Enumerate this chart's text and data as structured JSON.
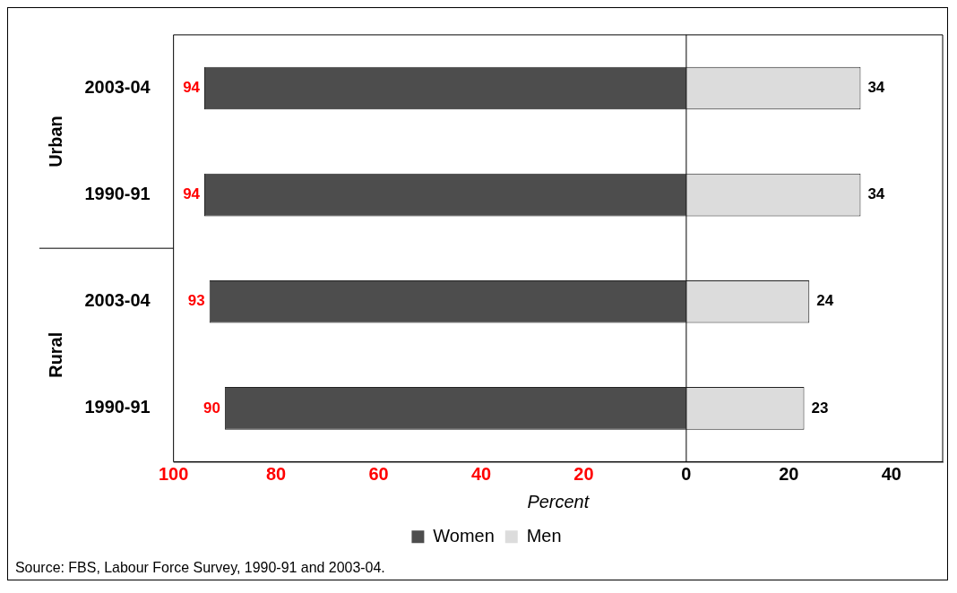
{
  "chart_data": {
    "type": "bar",
    "orientation": "horizontal",
    "categories": [
      "2003-04",
      "1990-91",
      "2003-04",
      "1990-91"
    ],
    "series": [
      {
        "name": "Women",
        "color": "#4d4d4d",
        "values": [
          94,
          94,
          93,
          90
        ],
        "base": [
          -94,
          -94,
          -93,
          -90
        ],
        "value_labels": [
          "94",
          "94",
          "93",
          "90"
        ]
      },
      {
        "name": "Men",
        "color": "#dcdcdc",
        "values": [
          34,
          34,
          24,
          23
        ],
        "value_labels": [
          "34",
          "34",
          "24",
          "23"
        ]
      }
    ],
    "xlim": [
      -100,
      50
    ],
    "xticks": [
      {
        "value": -100,
        "label": "100"
      },
      {
        "value": -80,
        "label": "80"
      },
      {
        "value": -60,
        "label": "60"
      },
      {
        "value": -40,
        "label": "40"
      },
      {
        "value": -20,
        "label": "20"
      },
      0,
      20,
      40
    ],
    "ref_lines": [
      {
        "axis": "x",
        "value": 0
      }
    ],
    "xlabel": "Percent",
    "legend": "bottom",
    "grid": false,
    "annotations": [
      "Urban",
      "Rural",
      "Source: FBS, Labour Force Survey, 1990-91 and 2003-04."
    ]
  }
}
